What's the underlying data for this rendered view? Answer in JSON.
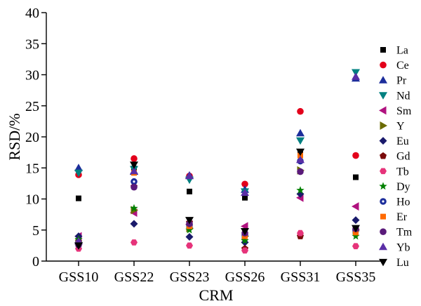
{
  "chart_data": {
    "type": "scatter",
    "categories": [
      "GSS10",
      "GSS22",
      "GSS23",
      "GSS26",
      "GSS31",
      "GSS35"
    ],
    "xlabel": "CRM",
    "ylabel": "RSD/%",
    "ylim": [
      0,
      40
    ],
    "yticks": [
      0,
      5,
      10,
      15,
      20,
      25,
      30,
      35,
      40
    ],
    "grid": false,
    "legend_position": "right",
    "series": [
      {
        "name": "La",
        "marker": "square",
        "color": "#000000",
        "values": [
          10.1,
          14.9,
          11.2,
          10.2,
          17.5,
          13.5
        ]
      },
      {
        "name": "Ce",
        "marker": "circle",
        "color": "#e3001b",
        "values": [
          13.9,
          16.5,
          13.7,
          12.4,
          24.1,
          17.0
        ]
      },
      {
        "name": "Pr",
        "marker": "triangle-up",
        "color": "#1c2d9b",
        "values": [
          15.0,
          14.4,
          13.8,
          11.5,
          20.6,
          29.4
        ]
      },
      {
        "name": "Nd",
        "marker": "triangle-down",
        "color": "#008080",
        "values": [
          14.2,
          14.8,
          13.1,
          11.2,
          19.4,
          30.4
        ]
      },
      {
        "name": "Sm",
        "marker": "triangle-left",
        "color": "#b0127f",
        "values": [
          4.0,
          7.8,
          5.9,
          5.6,
          10.2,
          8.8
        ]
      },
      {
        "name": "Y",
        "marker": "triangle-right",
        "color": "#6b6b00",
        "values": [
          3.0,
          8.2,
          5.3,
          4.0,
          14.6,
          5.0
        ]
      },
      {
        "name": "Eu",
        "marker": "diamond",
        "color": "#1a1a6b",
        "values": [
          4.0,
          6.0,
          3.9,
          3.0,
          10.8,
          6.6
        ]
      },
      {
        "name": "Gd",
        "marker": "pentagon",
        "color": "#7a0a0a",
        "values": [
          3.1,
          12.0,
          6.2,
          2.0,
          4.0,
          5.0
        ]
      },
      {
        "name": "Tb",
        "marker": "hexagon",
        "color": "#e6337a",
        "values": [
          2.0,
          3.0,
          2.5,
          1.7,
          4.5,
          2.4
        ]
      },
      {
        "name": "Dy",
        "marker": "star",
        "color": "#008000",
        "values": [
          3.5,
          8.5,
          5.0,
          3.3,
          11.4,
          4.0
        ]
      },
      {
        "name": "Ho",
        "marker": "circle-dot",
        "color": "#1c2d9b",
        "values": [
          3.0,
          12.8,
          5.8,
          4.2,
          16.1,
          4.9
        ]
      },
      {
        "name": "Er",
        "marker": "square",
        "color": "#ff6a00",
        "values": [
          2.8,
          14.2,
          5.6,
          4.0,
          17.0,
          4.6
        ]
      },
      {
        "name": "Tm",
        "marker": "circle",
        "color": "#5a1a7a",
        "values": [
          2.6,
          11.9,
          6.0,
          4.5,
          14.4,
          5.2
        ]
      },
      {
        "name": "Yb",
        "marker": "triangle-up",
        "color": "#5a2ea6",
        "values": [
          3.2,
          14.5,
          13.7,
          11.0,
          16.3,
          29.7
        ]
      },
      {
        "name": "Lu",
        "marker": "triangle-down",
        "color": "#000000",
        "values": [
          2.5,
          15.5,
          6.6,
          4.8,
          17.6,
          5.3
        ]
      }
    ]
  }
}
